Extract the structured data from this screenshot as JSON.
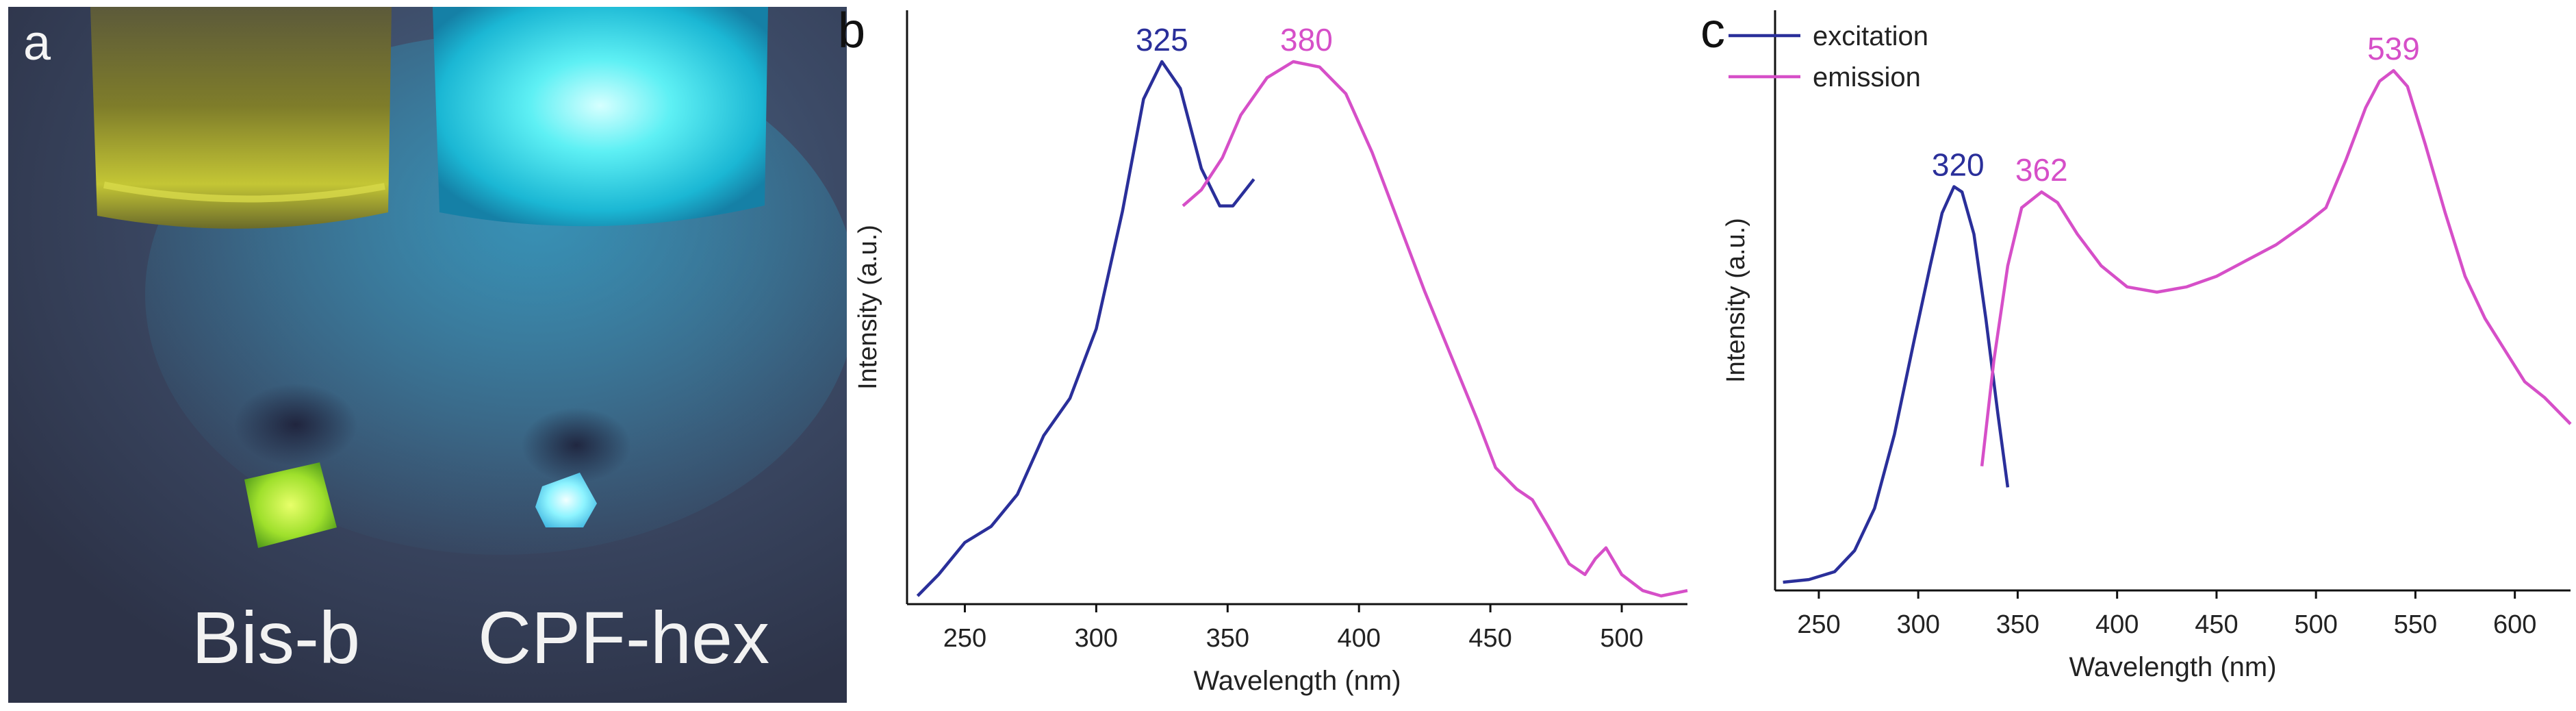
{
  "panels": {
    "a": {
      "letter": "a",
      "sample_labels": [
        "Bis-b",
        "CPF-hex"
      ]
    },
    "b": {
      "letter": "b"
    },
    "c": {
      "letter": "c"
    }
  },
  "colors": {
    "excitation": "#2a2f9a",
    "emission": "#d64fc8",
    "axis": "#111111"
  },
  "chart_data": [
    {
      "panel": "b",
      "type": "line",
      "xlabel": "Wavelength (nm)",
      "ylabel": "Intensity (a.u.)",
      "xlim": [
        228,
        525
      ],
      "ylim": [
        0,
        1.0
      ],
      "x_ticks": [
        250,
        300,
        350,
        400,
        450,
        500
      ],
      "y_ticks_shown": false,
      "grid": false,
      "series": [
        {
          "color": "#2a2f9a",
          "points": [
            [
              232,
              0.0
            ],
            [
              240,
              0.04
            ],
            [
              250,
              0.1
            ],
            [
              260,
              0.13
            ],
            [
              270,
              0.19
            ],
            [
              280,
              0.3
            ],
            [
              290,
              0.37
            ],
            [
              300,
              0.5
            ],
            [
              310,
              0.72
            ],
            [
              318,
              0.93
            ],
            [
              325,
              1.0
            ],
            [
              332,
              0.95
            ],
            [
              340,
              0.8
            ],
            [
              347,
              0.73
            ],
            [
              352,
              0.73
            ],
            [
              360,
              0.78
            ]
          ]
        },
        {
          "color": "#d64fc8",
          "points": [
            [
              333,
              0.73
            ],
            [
              340,
              0.76
            ],
            [
              348,
              0.82
            ],
            [
              355,
              0.9
            ],
            [
              365,
              0.97
            ],
            [
              375,
              1.0
            ],
            [
              385,
              0.99
            ],
            [
              395,
              0.94
            ],
            [
              405,
              0.83
            ],
            [
              415,
              0.7
            ],
            [
              425,
              0.57
            ],
            [
              435,
              0.45
            ],
            [
              445,
              0.33
            ],
            [
              452,
              0.24
            ],
            [
              460,
              0.2
            ],
            [
              466,
              0.18
            ],
            [
              472,
              0.13
            ],
            [
              480,
              0.06
            ],
            [
              486,
              0.04
            ],
            [
              490,
              0.07
            ],
            [
              494,
              0.09
            ],
            [
              500,
              0.04
            ],
            [
              508,
              0.01
            ],
            [
              515,
              0.0
            ],
            [
              525,
              0.01
            ]
          ]
        }
      ],
      "peak_labels": [
        {
          "text": "325",
          "x": 325,
          "y": 1.0,
          "series": 0
        },
        {
          "text": "380",
          "x": 380,
          "y": 1.0,
          "series": 1
        }
      ]
    },
    {
      "panel": "c",
      "type": "line",
      "xlabel": "Wavelength (nm)",
      "ylabel": "Intensity (a.u.)",
      "xlim": [
        228,
        628
      ],
      "ylim": [
        0,
        1.0
      ],
      "x_ticks": [
        250,
        300,
        350,
        400,
        450,
        500,
        550,
        600
      ],
      "y_ticks_shown": false,
      "grid": false,
      "legend": "top-left",
      "series": [
        {
          "name": "excitation",
          "color": "#2a2f9a",
          "points": [
            [
              232,
              0.0
            ],
            [
              245,
              0.005
            ],
            [
              258,
              0.02
            ],
            [
              268,
              0.06
            ],
            [
              278,
              0.14
            ],
            [
              288,
              0.28
            ],
            [
              298,
              0.46
            ],
            [
              306,
              0.6
            ],
            [
              312,
              0.7
            ],
            [
              318,
              0.75
            ],
            [
              322,
              0.74
            ],
            [
              328,
              0.66
            ],
            [
              334,
              0.5
            ],
            [
              340,
              0.32
            ],
            [
              345,
              0.18
            ]
          ]
        },
        {
          "name": "emission",
          "color": "#d64fc8",
          "points": [
            [
              332,
              0.22
            ],
            [
              338,
              0.42
            ],
            [
              345,
              0.6
            ],
            [
              352,
              0.71
            ],
            [
              362,
              0.74
            ],
            [
              370,
              0.72
            ],
            [
              380,
              0.66
            ],
            [
              392,
              0.6
            ],
            [
              405,
              0.56
            ],
            [
              420,
              0.55
            ],
            [
              435,
              0.56
            ],
            [
              450,
              0.58
            ],
            [
              465,
              0.61
            ],
            [
              480,
              0.64
            ],
            [
              495,
              0.68
            ],
            [
              505,
              0.71
            ],
            [
              515,
              0.8
            ],
            [
              525,
              0.9
            ],
            [
              532,
              0.95
            ],
            [
              539,
              0.97
            ],
            [
              546,
              0.94
            ],
            [
              555,
              0.83
            ],
            [
              565,
              0.7
            ],
            [
              575,
              0.58
            ],
            [
              585,
              0.5
            ],
            [
              595,
              0.44
            ],
            [
              605,
              0.38
            ],
            [
              615,
              0.35
            ],
            [
              628,
              0.3
            ]
          ]
        }
      ],
      "peak_labels": [
        {
          "text": "320",
          "x": 320,
          "y": 0.75,
          "series": 0
        },
        {
          "text": "362",
          "x": 362,
          "y": 0.74,
          "series": 1
        },
        {
          "text": "539",
          "x": 539,
          "y": 0.97,
          "series": 1
        }
      ]
    }
  ]
}
